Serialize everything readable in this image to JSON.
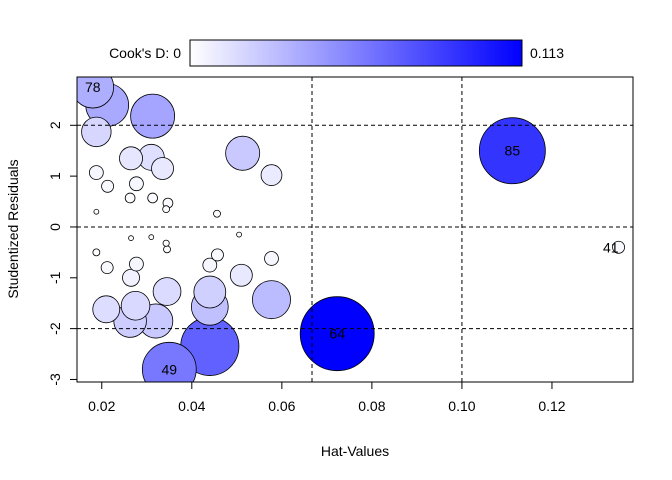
{
  "chart_data": {
    "type": "scatter",
    "subtype": "influence-bubble-plot",
    "xlabel": "Hat-Values",
    "ylabel": "Studentized Residuals",
    "xlim": [
      0.0145,
      0.138
    ],
    "ylim": [
      -3.05,
      2.95
    ],
    "x_ticks": [
      0.02,
      0.04,
      0.06,
      0.08,
      0.1,
      0.12
    ],
    "x_tick_labels": [
      "0.02",
      "0.04",
      "0.06",
      "0.08",
      "0.10",
      "0.12"
    ],
    "y_ticks": [
      -3,
      -2,
      -1,
      0,
      1,
      2
    ],
    "y_tick_labels": [
      "-3",
      "-2",
      "-1",
      "0",
      "1",
      "2"
    ],
    "reference_lines": {
      "horizontal": [
        -2,
        0,
        2
      ],
      "vertical": [
        0.0667,
        0.1
      ]
    },
    "color_scale": {
      "label": "Cook's D:",
      "min_label": "0",
      "max_label": "0.113",
      "min": 0,
      "max": 0.113,
      "low_color": "#ffffff",
      "high_color": "#0000ff"
    },
    "point_labels": [
      "78",
      "85",
      "41",
      "64",
      "49"
    ],
    "points": [
      {
        "x": 0.018,
        "y": 2.75,
        "d": 0.036,
        "label": "78"
      },
      {
        "x": 0.0212,
        "y": 2.4,
        "d": 0.038
      },
      {
        "x": 0.0313,
        "y": 2.18,
        "d": 0.04
      },
      {
        "x": 0.0188,
        "y": 1.87,
        "d": 0.018
      },
      {
        "x": 0.0265,
        "y": 1.35,
        "d": 0.011
      },
      {
        "x": 0.031,
        "y": 1.37,
        "d": 0.014
      },
      {
        "x": 0.0335,
        "y": 1.15,
        "d": 0.01
      },
      {
        "x": 0.0513,
        "y": 1.45,
        "d": 0.024
      },
      {
        "x": 0.0577,
        "y": 1.02,
        "d": 0.009
      },
      {
        "x": 0.1112,
        "y": 1.5,
        "d": 0.09,
        "label": "85"
      },
      {
        "x": 0.0188,
        "y": 1.07,
        "d": 0.004
      },
      {
        "x": 0.0213,
        "y": 0.8,
        "d": 0.003
      },
      {
        "x": 0.0277,
        "y": 0.85,
        "d": 0.004
      },
      {
        "x": 0.0263,
        "y": 0.57,
        "d": 0.002
      },
      {
        "x": 0.0313,
        "y": 0.57,
        "d": 0.002
      },
      {
        "x": 0.0347,
        "y": 0.47,
        "d": 0.002
      },
      {
        "x": 0.0343,
        "y": 0.35,
        "d": 0.001
      },
      {
        "x": 0.0456,
        "y": 0.26,
        "d": 0.001
      },
      {
        "x": 0.0188,
        "y": 0.3,
        "d": 0.0005
      },
      {
        "x": 0.0265,
        "y": -0.22,
        "d": 0.0005
      },
      {
        "x": 0.031,
        "y": -0.2,
        "d": 0.0005
      },
      {
        "x": 0.0343,
        "y": -0.32,
        "d": 0.0008
      },
      {
        "x": 0.0345,
        "y": -0.44,
        "d": 0.001
      },
      {
        "x": 0.0505,
        "y": -0.15,
        "d": 0.0005
      },
      {
        "x": 0.0188,
        "y": -0.5,
        "d": 0.001
      },
      {
        "x": 0.0212,
        "y": -0.8,
        "d": 0.003
      },
      {
        "x": 0.0277,
        "y": -0.73,
        "d": 0.004
      },
      {
        "x": 0.0265,
        "y": -1.0,
        "d": 0.006
      },
      {
        "x": 0.0457,
        "y": -0.55,
        "d": 0.003
      },
      {
        "x": 0.044,
        "y": -0.75,
        "d": 0.004
      },
      {
        "x": 0.0577,
        "y": -0.62,
        "d": 0.004
      },
      {
        "x": 0.051,
        "y": -0.95,
        "d": 0.01
      },
      {
        "x": 0.0345,
        "y": -1.27,
        "d": 0.016
      },
      {
        "x": 0.044,
        "y": -1.28,
        "d": 0.021
      },
      {
        "x": 0.0275,
        "y": -1.55,
        "d": 0.017
      },
      {
        "x": 0.021,
        "y": -1.62,
        "d": 0.015
      },
      {
        "x": 0.044,
        "y": -1.57,
        "d": 0.028
      },
      {
        "x": 0.0577,
        "y": -1.43,
        "d": 0.03
      },
      {
        "x": 0.0263,
        "y": -1.85,
        "d": 0.022
      },
      {
        "x": 0.032,
        "y": -1.85,
        "d": 0.024
      },
      {
        "x": 0.044,
        "y": -2.35,
        "d": 0.07
      },
      {
        "x": 0.0723,
        "y": -2.1,
        "d": 0.113,
        "label": "64"
      },
      {
        "x": 0.035,
        "y": -2.8,
        "d": 0.06,
        "label": "49"
      },
      {
        "x": 0.1348,
        "y": -0.4,
        "d": 0.003,
        "label": "41"
      }
    ]
  }
}
